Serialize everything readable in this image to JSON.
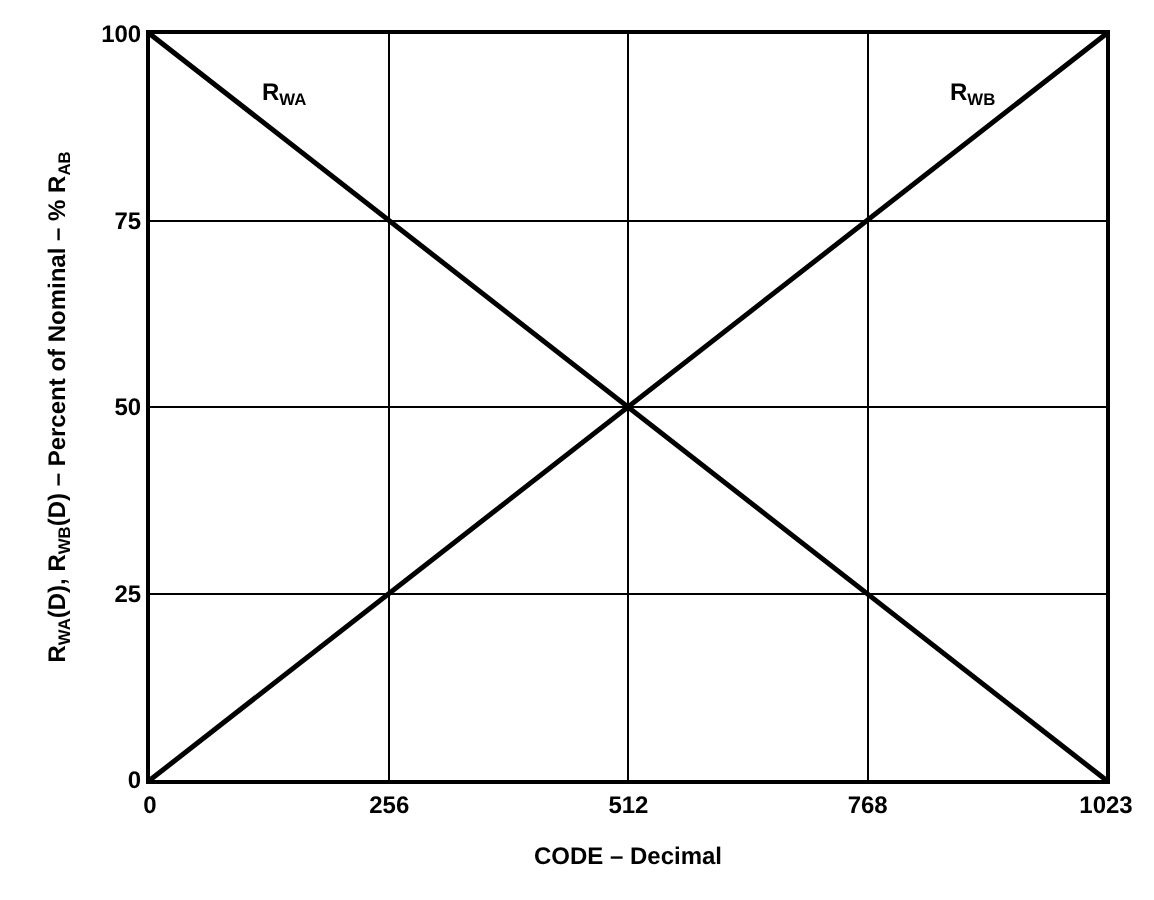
{
  "chart_data": {
    "type": "line",
    "xlabel": "CODE – Decimal",
    "ylabel": "R$_{WA}$(D), R$_{WB}$(D) – Percent of Nominal – % R$_{AB}$",
    "x": [
      0,
      1023
    ],
    "series": [
      {
        "name": "R$_{WA}$",
        "color": "#000000",
        "values": [
          100,
          0
        ]
      },
      {
        "name": "R$_{WB}$",
        "color": "#000000",
        "values": [
          0,
          100
        ]
      }
    ],
    "xlim": [
      0,
      1023
    ],
    "xticks": [
      0,
      256,
      512,
      768,
      1023
    ],
    "ylim": [
      0,
      100
    ],
    "yticks": [
      0,
      25,
      50,
      75,
      100
    ],
    "grid": true,
    "legend": false,
    "marker": "none",
    "line_style": "solid"
  }
}
